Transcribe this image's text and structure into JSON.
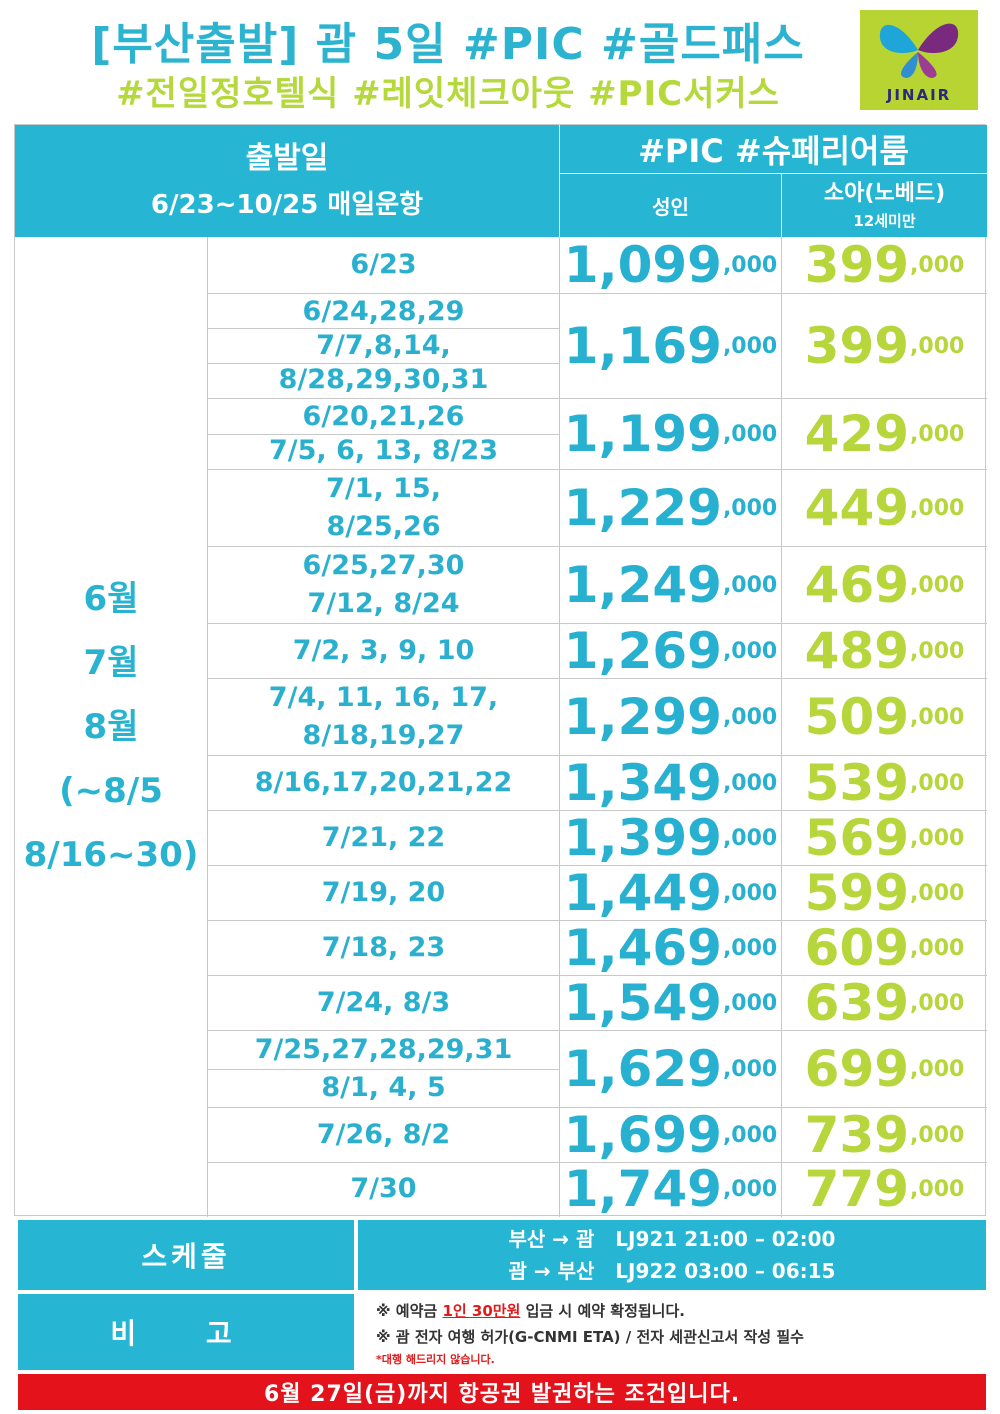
{
  "header": {
    "title_line1": "[부산출발] 괌 5일 #PIC #골드패스",
    "title_line2": "#전일정호텔식 #레잇체크아웃 #PIC서커스",
    "logo_text": "JINAIR"
  },
  "table": {
    "departure_header": "출발일",
    "departure_sub": "6/23~10/25 매일운항",
    "package_header": "#PIC #슈페리어룸",
    "adult_header": "성인",
    "child_header": "소아(노베드)",
    "child_sub": "12세미만",
    "months": [
      "6월",
      "7월",
      "8월",
      "(~8/5",
      "8/16~30)"
    ],
    "price_suffix": ",000",
    "rows": [
      {
        "dates": [
          "6/23"
        ],
        "adult": "1,099",
        "child": "399"
      },
      {
        "dates": [
          "6/24,28,29",
          "7/7,8,14,",
          "8/28,29,30,31"
        ],
        "adult": "1,169",
        "child": "399"
      },
      {
        "dates": [
          "6/20,21,26",
          "7/5, 6, 13, 8/23"
        ],
        "adult": "1,199",
        "child": "429"
      },
      {
        "dates": [
          "7/1, 15,",
          "8/25,26"
        ],
        "adult": "1,229",
        "child": "449"
      },
      {
        "dates": [
          "6/25,27,30",
          "7/12, 8/24"
        ],
        "adult": "1,249",
        "child": "469"
      },
      {
        "dates": [
          "7/2, 3, 9, 10"
        ],
        "adult": "1,269",
        "child": "489"
      },
      {
        "dates": [
          "7/4, 11, 16, 17,",
          "8/18,19,27"
        ],
        "adult": "1,299",
        "child": "509"
      },
      {
        "dates": [
          "8/16,17,20,21,22"
        ],
        "adult": "1,349",
        "child": "539"
      },
      {
        "dates": [
          "7/21, 22"
        ],
        "adult": "1,399",
        "child": "569"
      },
      {
        "dates": [
          "7/19, 20"
        ],
        "adult": "1,449",
        "child": "599"
      },
      {
        "dates": [
          "7/18, 23"
        ],
        "adult": "1,469",
        "child": "609"
      },
      {
        "dates": [
          "7/24, 8/3"
        ],
        "adult": "1,549",
        "child": "639"
      },
      {
        "dates": [
          "7/25,27,28,29,31",
          "8/1, 4, 5"
        ],
        "adult": "1,629",
        "child": "699"
      },
      {
        "dates": [
          "7/26, 8/2"
        ],
        "adult": "1,699",
        "child": "739"
      },
      {
        "dates": [
          "7/30"
        ],
        "adult": "1,749",
        "child": "779"
      }
    ]
  },
  "schedule": {
    "label": "스케줄",
    "outbound": "부산 → 괌   LJ921 21:00 – 02:00",
    "inbound": "괌 → 부산   LJ922 03:00 – 06:15"
  },
  "notes": {
    "label": "비 고",
    "line1_prefix": "※ 예약금 ",
    "line1_highlight": "1인 30만원",
    "line1_suffix": " 입금 시 예약 확정됩니다.",
    "line2": "※ 괌 전자 여행 허가(G-CNMI ETA) / 전자 세관신고서 작성 필수",
    "line3": "*대행 해드리지 않습니다."
  },
  "banner": "6월 27일(금)까지 항공권 발권하는 조건입니다.",
  "colors": {
    "accent_blue": "#26b6d3",
    "accent_green": "#b6d63b",
    "banner_red": "#e3121b"
  }
}
